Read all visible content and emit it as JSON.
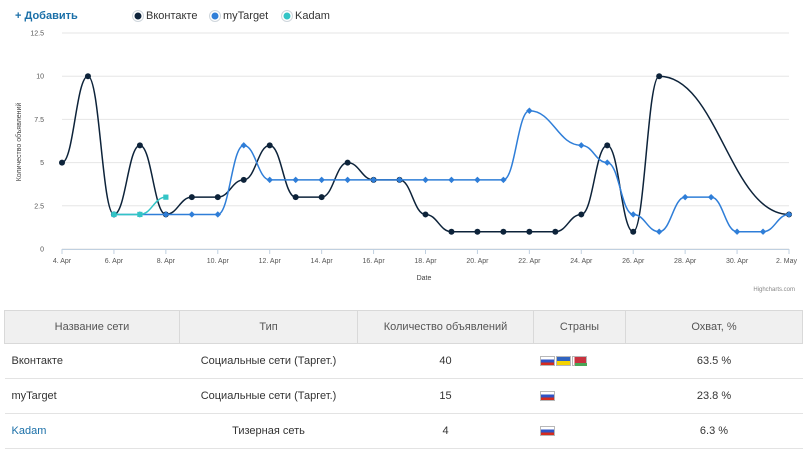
{
  "toolbar": {
    "add_label": "+ Добавить"
  },
  "legend": {
    "items": [
      "Вконтакте",
      "myTarget",
      "Kadam"
    ]
  },
  "chart_data": {
    "type": "line",
    "ylabel": "Количество объявлений",
    "xlabel": "Date",
    "ylim": [
      0,
      12.5
    ],
    "yticks": [
      0,
      2.5,
      5,
      7.5,
      10,
      12.5
    ],
    "ytick_labels": [
      "0",
      "2.5",
      "5",
      "7.5",
      "10",
      "12.5"
    ],
    "xlim_days": [
      0,
      28
    ],
    "xticks": [
      {
        "day": 0,
        "label": "4. Apr"
      },
      {
        "day": 2,
        "label": "6. Apr"
      },
      {
        "day": 4,
        "label": "8. Apr"
      },
      {
        "day": 6,
        "label": "10. Apr"
      },
      {
        "day": 8,
        "label": "12. Apr"
      },
      {
        "day": 10,
        "label": "14. Apr"
      },
      {
        "day": 12,
        "label": "16. Apr"
      },
      {
        "day": 14,
        "label": "18. Apr"
      },
      {
        "day": 16,
        "label": "20. Apr"
      },
      {
        "day": 18,
        "label": "22. Apr"
      },
      {
        "day": 20,
        "label": "24. Apr"
      },
      {
        "day": 22,
        "label": "26. Apr"
      },
      {
        "day": 24,
        "label": "28. Apr"
      },
      {
        "day": 26,
        "label": "30. Apr"
      },
      {
        "day": 28,
        "label": "2. May"
      }
    ],
    "credits": "Highcharts.com",
    "series": [
      {
        "name": "Вконтакте",
        "color": "#0d233a",
        "marker": "circle",
        "points": [
          [
            0,
            5
          ],
          [
            1,
            10
          ],
          [
            2,
            2
          ],
          [
            3,
            6
          ],
          [
            4,
            2
          ],
          [
            5,
            3
          ],
          [
            6,
            3
          ],
          [
            7,
            4
          ],
          [
            8,
            6
          ],
          [
            9,
            3
          ],
          [
            10,
            3
          ],
          [
            11,
            5
          ],
          [
            12,
            4
          ],
          [
            13,
            4
          ],
          [
            14,
            2
          ],
          [
            15,
            1
          ],
          [
            16,
            1
          ],
          [
            17,
            1
          ],
          [
            18,
            1
          ],
          [
            19,
            1
          ],
          [
            20,
            2
          ],
          [
            21,
            6
          ],
          [
            22,
            1
          ],
          [
            23,
            10
          ],
          [
            28,
            2
          ]
        ]
      },
      {
        "name": "myTarget",
        "color": "#2f7ed8",
        "marker": "diamond",
        "points": [
          [
            2,
            2
          ],
          [
            3,
            2
          ],
          [
            4,
            2
          ],
          [
            5,
            2
          ],
          [
            6,
            2
          ],
          [
            7,
            6
          ],
          [
            8,
            4
          ],
          [
            9,
            4
          ],
          [
            10,
            4
          ],
          [
            11,
            4
          ],
          [
            12,
            4
          ],
          [
            13,
            4
          ],
          [
            14,
            4
          ],
          [
            15,
            4
          ],
          [
            16,
            4
          ],
          [
            17,
            4
          ],
          [
            18,
            8
          ],
          [
            20,
            6
          ],
          [
            21,
            5
          ],
          [
            22,
            2
          ],
          [
            23,
            1
          ],
          [
            24,
            3
          ],
          [
            25,
            3
          ],
          [
            26,
            1
          ],
          [
            27,
            1
          ],
          [
            28,
            2
          ]
        ]
      },
      {
        "name": "Kadam",
        "color": "#33c4c6",
        "marker": "square",
        "points": [
          [
            2,
            2
          ],
          [
            3,
            2
          ],
          [
            4,
            3
          ]
        ]
      }
    ]
  },
  "table": {
    "headers": [
      "Название сети",
      "Тип",
      "Количество объявлений",
      "Страны",
      "Охват, %"
    ],
    "rows": [
      {
        "name": "Вконтакте",
        "type": "Социальные сети (Таргет.)",
        "count": "40",
        "flags": [
          "ru",
          "ua",
          "by"
        ],
        "reach": "63.5 %"
      },
      {
        "name": "myTarget",
        "type": "Социальные сети (Таргет.)",
        "count": "15",
        "flags": [
          "ru"
        ],
        "reach": "23.8 %"
      },
      {
        "name": "Kadam",
        "type": "Тизерная сеть",
        "count": "4",
        "flags": [
          "ru"
        ],
        "reach": "6.3 %"
      }
    ]
  }
}
